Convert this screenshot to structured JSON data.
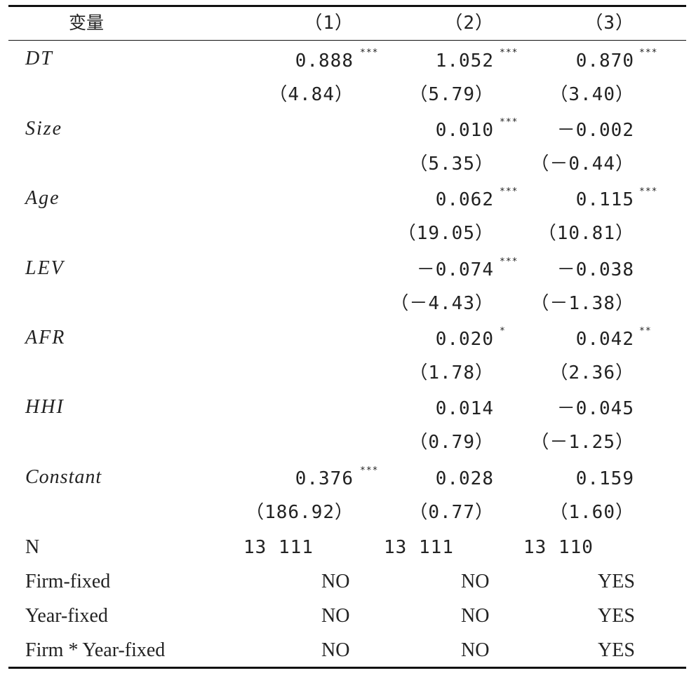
{
  "header": {
    "variable": "变量",
    "col1": "（1）",
    "col2": "（2）",
    "col3": "（3）"
  },
  "rows": {
    "dt": {
      "name": "DT",
      "c1": "0.888",
      "c1s": "***",
      "c1t": "（4.84）",
      "c2": "1.052",
      "c2s": "***",
      "c2t": "（5.79）",
      "c3": "0.870",
      "c3s": "***",
      "c3t": "（3.40）"
    },
    "size": {
      "name": "Size",
      "c2": "0.010",
      "c2s": "***",
      "c2t": "（5.35）",
      "c3": "－0.002",
      "c3t": "（－0.44）"
    },
    "age": {
      "name": "Age",
      "c2": "0.062",
      "c2s": "***",
      "c2t": "（19.05）",
      "c3": "0.115",
      "c3s": "***",
      "c3t": "（10.81）"
    },
    "lev": {
      "name": "LEV",
      "c2": "－0.074",
      "c2s": "***",
      "c2t": "（－4.43）",
      "c3": "－0.038",
      "c3t": "（－1.38）"
    },
    "afr": {
      "name": "AFR",
      "c2": "0.020",
      "c2s": "*",
      "c2t": "（1.78）",
      "c3": "0.042",
      "c3s": "**",
      "c3t": "（2.36）"
    },
    "hhi": {
      "name": "HHI",
      "c2": "0.014",
      "c2t": "（0.79）",
      "c3": "－0.045",
      "c3t": "（－1.25）"
    },
    "constant": {
      "name": "Constant",
      "c1": "0.376",
      "c1s": "***",
      "c1t": "（186.92）",
      "c2": "0.028",
      "c2t": "（0.77）",
      "c3": "0.159",
      "c3t": "（1.60）"
    }
  },
  "n_row": {
    "label": "N",
    "c1": "13 111",
    "c2": "13 111",
    "c3": "13 110"
  },
  "fixed": [
    {
      "label": "Firm-fixed",
      "c1": "NO",
      "c2": "NO",
      "c3": "YES"
    },
    {
      "label": "Year-fixed",
      "c1": "NO",
      "c2": "NO",
      "c3": "YES"
    },
    {
      "label": "Firm * Year-fixed",
      "c1": "NO",
      "c2": "NO",
      "c3": "YES"
    }
  ]
}
